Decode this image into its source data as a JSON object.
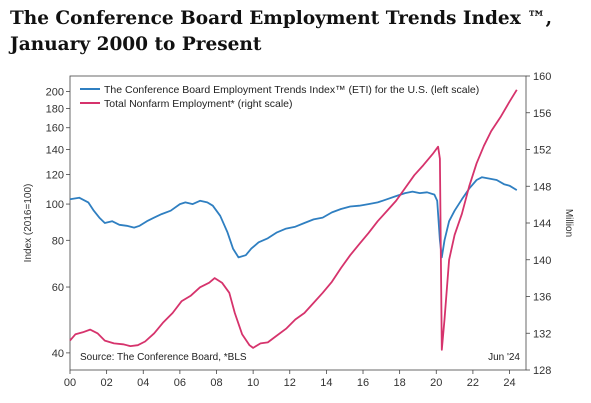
{
  "title": {
    "line1": "The Conference Board Employment Trends Index ™,",
    "line2": "January 2000 to Present"
  },
  "chart_data": {
    "type": "line",
    "x_ticks": [
      "00",
      "02",
      "04",
      "06",
      "08",
      "10",
      "12",
      "14",
      "16",
      "18",
      "20",
      "22",
      "24"
    ],
    "left_axis": {
      "label": "Index (2016=100)",
      "scale": "log",
      "ylim": [
        36,
        220
      ],
      "ticks": [
        "40",
        "60",
        "80",
        "100",
        "120",
        "140",
        "160",
        "180",
        "200"
      ]
    },
    "right_axis": {
      "label": "Million",
      "scale": "linear",
      "ylim": [
        128,
        160
      ],
      "ticks": [
        "128",
        "132",
        "136",
        "140",
        "144",
        "148",
        "152",
        "156",
        "160"
      ]
    },
    "series": [
      {
        "name": "The Conference Board Employment Trends Index™ (ETI) for the U.S. (left scale)",
        "axis": "left",
        "color": "#2f7fc1",
        "points": [
          [
            2000.0,
            103
          ],
          [
            2000.5,
            104
          ],
          [
            2001.0,
            101
          ],
          [
            2001.3,
            96
          ],
          [
            2001.6,
            92
          ],
          [
            2001.9,
            89
          ],
          [
            2002.3,
            90
          ],
          [
            2002.7,
            88
          ],
          [
            2003.1,
            87.5
          ],
          [
            2003.5,
            86.5
          ],
          [
            2003.8,
            87.5
          ],
          [
            2004.2,
            90
          ],
          [
            2004.6,
            92
          ],
          [
            2005.0,
            94
          ],
          [
            2005.5,
            96
          ],
          [
            2006.0,
            100
          ],
          [
            2006.3,
            101
          ],
          [
            2006.7,
            100
          ],
          [
            2007.1,
            102
          ],
          [
            2007.5,
            101
          ],
          [
            2007.8,
            99
          ],
          [
            2008.2,
            93
          ],
          [
            2008.6,
            84
          ],
          [
            2008.9,
            76
          ],
          [
            2009.2,
            72
          ],
          [
            2009.6,
            73
          ],
          [
            2009.9,
            76
          ],
          [
            2010.3,
            79
          ],
          [
            2010.8,
            81
          ],
          [
            2011.3,
            84
          ],
          [
            2011.8,
            86
          ],
          [
            2012.3,
            87
          ],
          [
            2012.8,
            89
          ],
          [
            2013.3,
            91
          ],
          [
            2013.8,
            92
          ],
          [
            2014.3,
            95
          ],
          [
            2014.8,
            97
          ],
          [
            2015.3,
            98.5
          ],
          [
            2015.8,
            99
          ],
          [
            2016.3,
            100
          ],
          [
            2016.8,
            101
          ],
          [
            2017.3,
            103
          ],
          [
            2017.8,
            105
          ],
          [
            2018.3,
            107
          ],
          [
            2018.7,
            108
          ],
          [
            2019.1,
            107
          ],
          [
            2019.5,
            107.5
          ],
          [
            2019.9,
            106
          ],
          [
            2020.05,
            102
          ],
          [
            2020.2,
            80
          ],
          [
            2020.3,
            72
          ],
          [
            2020.45,
            80
          ],
          [
            2020.7,
            90
          ],
          [
            2021.0,
            96
          ],
          [
            2021.4,
            103
          ],
          [
            2021.8,
            110
          ],
          [
            2022.2,
            116
          ],
          [
            2022.5,
            118
          ],
          [
            2022.9,
            117
          ],
          [
            2023.3,
            116
          ],
          [
            2023.7,
            113
          ],
          [
            2024.0,
            112
          ],
          [
            2024.4,
            109
          ]
        ]
      },
      {
        "name": "Total Nonfarm Employment* (right scale)",
        "axis": "right",
        "color": "#d6336c",
        "points": [
          [
            2000.0,
            131.2
          ],
          [
            2000.3,
            131.9
          ],
          [
            2000.7,
            132.1
          ],
          [
            2001.1,
            132.4
          ],
          [
            2001.5,
            132.0
          ],
          [
            2001.9,
            131.2
          ],
          [
            2002.4,
            130.9
          ],
          [
            2002.9,
            130.8
          ],
          [
            2003.3,
            130.6
          ],
          [
            2003.7,
            130.7
          ],
          [
            2004.1,
            131.1
          ],
          [
            2004.6,
            132.0
          ],
          [
            2005.1,
            133.2
          ],
          [
            2005.6,
            134.2
          ],
          [
            2006.1,
            135.5
          ],
          [
            2006.6,
            136.1
          ],
          [
            2007.1,
            137.0
          ],
          [
            2007.6,
            137.5
          ],
          [
            2007.9,
            138.0
          ],
          [
            2008.3,
            137.5
          ],
          [
            2008.7,
            136.4
          ],
          [
            2009.0,
            134.2
          ],
          [
            2009.4,
            131.9
          ],
          [
            2009.8,
            130.7
          ],
          [
            2010.0,
            130.4
          ],
          [
            2010.4,
            130.9
          ],
          [
            2010.8,
            131.0
          ],
          [
            2011.2,
            131.6
          ],
          [
            2011.8,
            132.5
          ],
          [
            2012.3,
            133.5
          ],
          [
            2012.8,
            134.2
          ],
          [
            2013.3,
            135.3
          ],
          [
            2013.8,
            136.4
          ],
          [
            2014.3,
            137.6
          ],
          [
            2014.8,
            139.1
          ],
          [
            2015.3,
            140.5
          ],
          [
            2015.8,
            141.7
          ],
          [
            2016.3,
            142.9
          ],
          [
            2016.8,
            144.2
          ],
          [
            2017.3,
            145.3
          ],
          [
            2017.8,
            146.4
          ],
          [
            2018.3,
            147.8
          ],
          [
            2018.8,
            149.2
          ],
          [
            2019.3,
            150.3
          ],
          [
            2019.8,
            151.5
          ],
          [
            2020.1,
            152.3
          ],
          [
            2020.2,
            151.0
          ],
          [
            2020.3,
            130.2
          ],
          [
            2020.45,
            133.5
          ],
          [
            2020.7,
            140.0
          ],
          [
            2021.0,
            142.7
          ],
          [
            2021.4,
            145.0
          ],
          [
            2021.8,
            148.0
          ],
          [
            2022.2,
            150.5
          ],
          [
            2022.6,
            152.4
          ],
          [
            2023.0,
            154.0
          ],
          [
            2023.5,
            155.5
          ],
          [
            2024.0,
            157.2
          ],
          [
            2024.4,
            158.5
          ]
        ]
      }
    ],
    "source": "Source: The Conference Board, *BLS",
    "date_label": "Jun '24",
    "grid": false,
    "legend_position": "top-left"
  }
}
